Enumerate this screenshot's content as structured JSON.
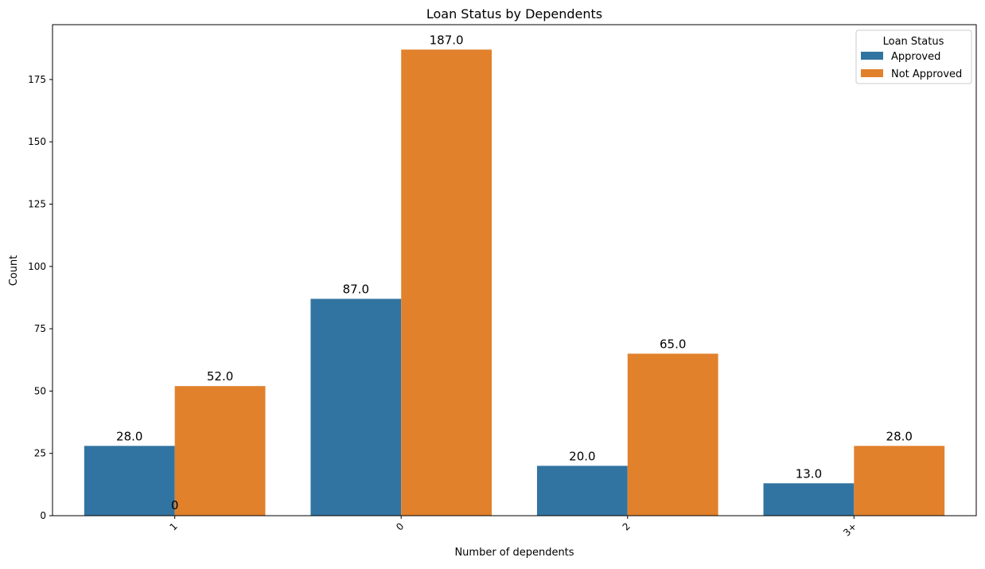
{
  "chart_data": {
    "type": "bar",
    "title": "Loan Status by Dependents",
    "xlabel": "Number of dependents",
    "ylabel": "Count",
    "categories": [
      "1",
      "0",
      "2",
      "3+"
    ],
    "series": [
      {
        "name": "Approved",
        "values": [
          28,
          87,
          20,
          13
        ],
        "labels": [
          "28.0",
          "87.0",
          "20.0",
          "13.0"
        ],
        "color": "#3274a1"
      },
      {
        "name": "Not Approved",
        "values": [
          52,
          187,
          65,
          28
        ],
        "labels": [
          "52.0",
          "187.0",
          "65.0",
          "28.0"
        ],
        "color": "#e1812c"
      }
    ],
    "extra_label": "0",
    "ylim": [
      0,
      197
    ],
    "yticks": [
      0,
      25,
      50,
      75,
      100,
      125,
      150,
      175
    ],
    "ytick_labels": [
      "0",
      "25",
      "50",
      "75",
      "100",
      "125",
      "150",
      "175"
    ],
    "xtick_rotation": 45,
    "legend": {
      "title": "Loan Status",
      "placement": "top-right"
    },
    "grid": false
  }
}
